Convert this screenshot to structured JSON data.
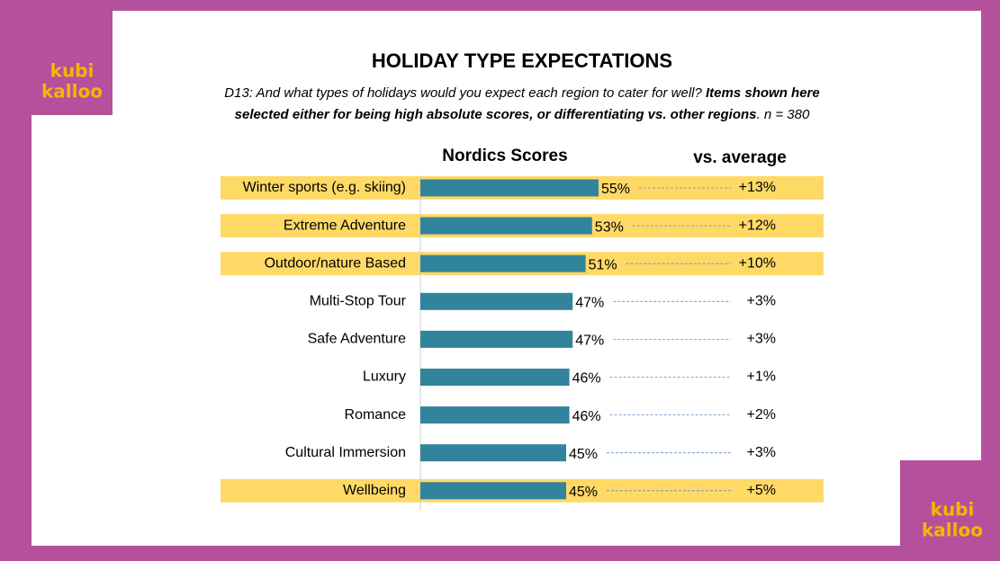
{
  "chart_data": {
    "type": "bar",
    "title": "HOLIDAY TYPE EXPECTATIONS",
    "subtitle": [
      {
        "text": "D13: And what types of holidays would you expect each region to cater for well? ",
        "bold": false
      },
      {
        "text": "Items shown here selected either for being high absolute scores, or differentiating vs. other regions",
        "bold": true
      },
      {
        "text": ". n = 380",
        "bold": false
      }
    ],
    "logo": {
      "line1": "kubi",
      "line2": "kalloo"
    },
    "column_headers": {
      "scores": "Nordics Scores",
      "vs_average": "vs. average"
    },
    "categories": [
      "Winter sports (e.g. skiing)",
      "Extreme Adventure",
      "Outdoor/nature Based",
      "Multi-Stop Tour",
      "Safe Adventure",
      "Luxury",
      "Romance",
      "Cultural Immersion",
      "Wellbeing"
    ],
    "values": [
      55,
      53,
      51,
      47,
      47,
      46,
      46,
      45,
      45
    ],
    "value_labels": [
      "55%",
      "53%",
      "51%",
      "47%",
      "47%",
      "46%",
      "46%",
      "45%",
      "45%"
    ],
    "vs_average": {
      "values": [
        13,
        12,
        10,
        3,
        3,
        1,
        2,
        3,
        5
      ],
      "value_labels": [
        "+13%",
        "+12%",
        "+10%",
        "+3%",
        "+3%",
        "+1%",
        "+2%",
        "+3%",
        "+5%"
      ]
    },
    "highlighted": [
      true,
      true,
      true,
      false,
      false,
      false,
      false,
      false,
      true
    ],
    "color": "#31849b",
    "highlight_color": "#ffd966",
    "xlim": [
      0,
      100
    ]
  }
}
